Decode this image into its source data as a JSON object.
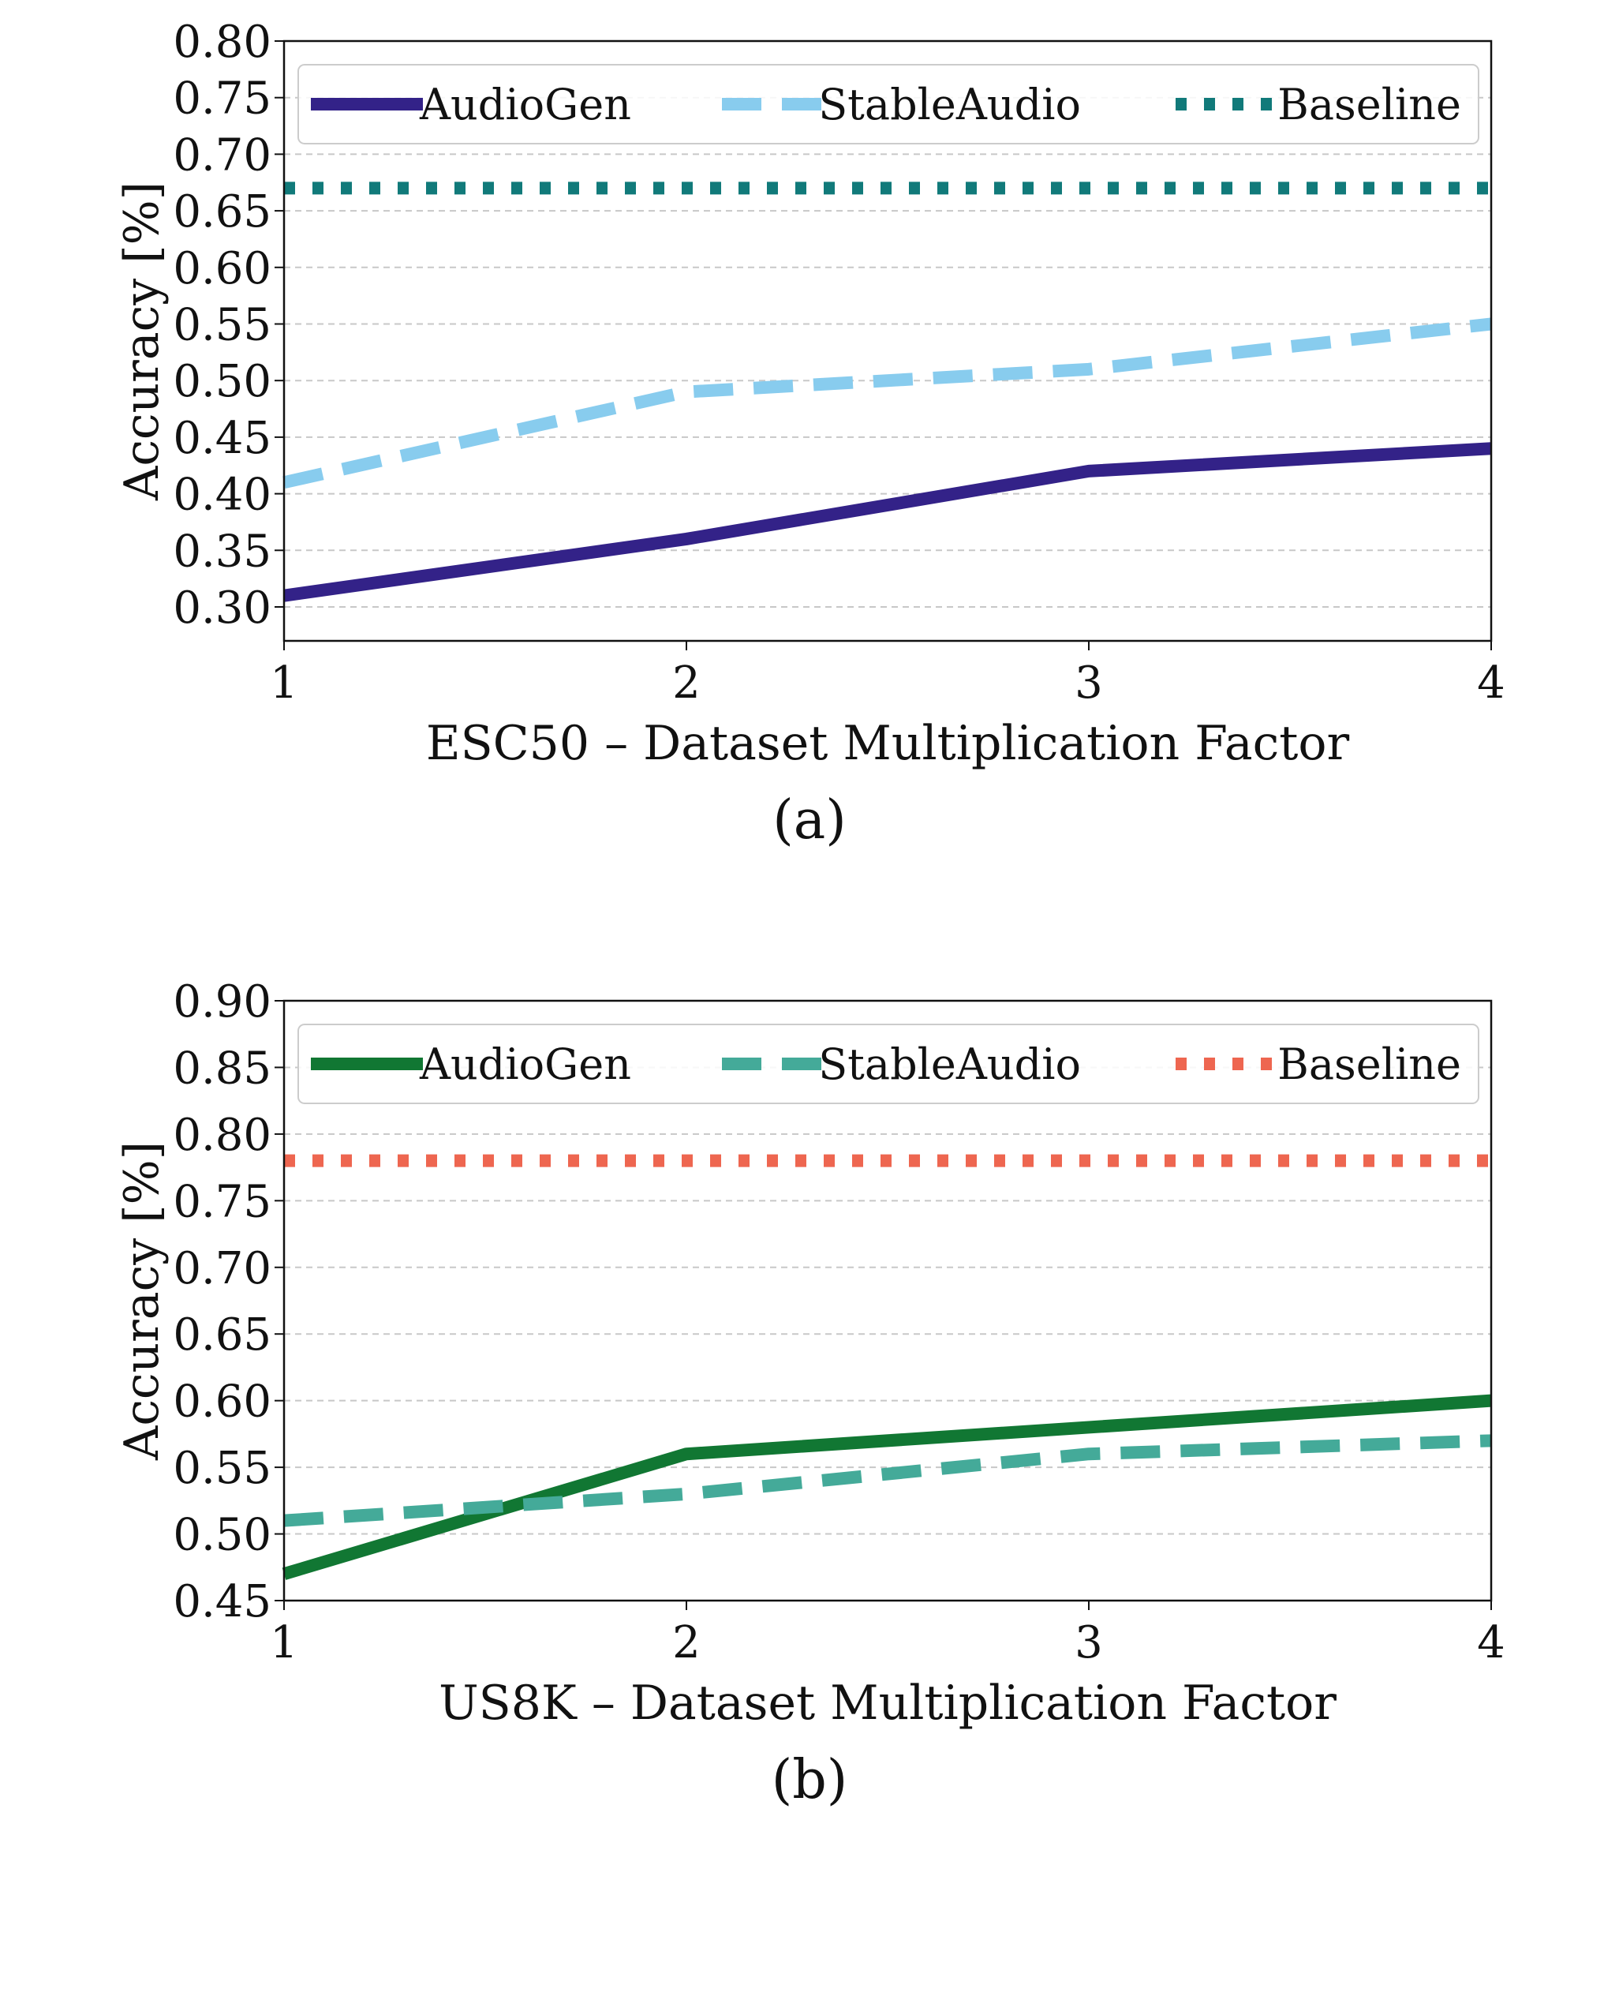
{
  "chart_data": [
    {
      "type": "line",
      "caption": "(a)",
      "xlabel": "ESC50 – Dataset Multiplication Factor",
      "ylabel": "Accuracy [%]",
      "x": [
        1,
        2,
        3,
        4
      ],
      "xticks": [
        "1",
        "2",
        "3",
        "4"
      ],
      "xlim": [
        1,
        4
      ],
      "yticks": [
        "0.30",
        "0.35",
        "0.40",
        "0.45",
        "0.50",
        "0.55",
        "0.60",
        "0.65",
        "0.70",
        "0.75",
        "0.80"
      ],
      "ylim": [
        0.27,
        0.8
      ],
      "grid": "horizontal-dashed",
      "legend": "top, inside, 3 columns",
      "series": [
        {
          "name": "AudioGen",
          "values": [
            0.31,
            0.36,
            0.42,
            0.44
          ],
          "color": "#332288",
          "style": "solid"
        },
        {
          "name": "StableAudio",
          "values": [
            0.41,
            0.49,
            0.51,
            0.55
          ],
          "color": "#88CCEE",
          "style": "dashed"
        },
        {
          "name": "Baseline",
          "values": [
            0.67,
            0.67,
            0.67,
            0.67
          ],
          "color": "#117A7A",
          "style": "dotted"
        }
      ]
    },
    {
      "type": "line",
      "caption": "(b)",
      "xlabel": "US8K – Dataset Multiplication Factor",
      "ylabel": "Accuracy [%]",
      "x": [
        1,
        2,
        3,
        4
      ],
      "xticks": [
        "1",
        "2",
        "3",
        "4"
      ],
      "xlim": [
        1,
        4
      ],
      "yticks": [
        "0.45",
        "0.50",
        "0.55",
        "0.60",
        "0.65",
        "0.70",
        "0.75",
        "0.80",
        "0.85",
        "0.90"
      ],
      "ylim": [
        0.45,
        0.9
      ],
      "grid": "horizontal-dashed",
      "legend": "top, inside, 3 columns",
      "series": [
        {
          "name": "AudioGen",
          "values": [
            0.47,
            0.56,
            0.58,
            0.6
          ],
          "color": "#117733",
          "style": "solid"
        },
        {
          "name": "StableAudio",
          "values": [
            0.51,
            0.53,
            0.56,
            0.57
          ],
          "color": "#44AA99",
          "style": "dashed"
        },
        {
          "name": "Baseline",
          "values": [
            0.78,
            0.78,
            0.78,
            0.78
          ],
          "color": "#EE6650",
          "style": "dotted"
        }
      ]
    }
  ]
}
